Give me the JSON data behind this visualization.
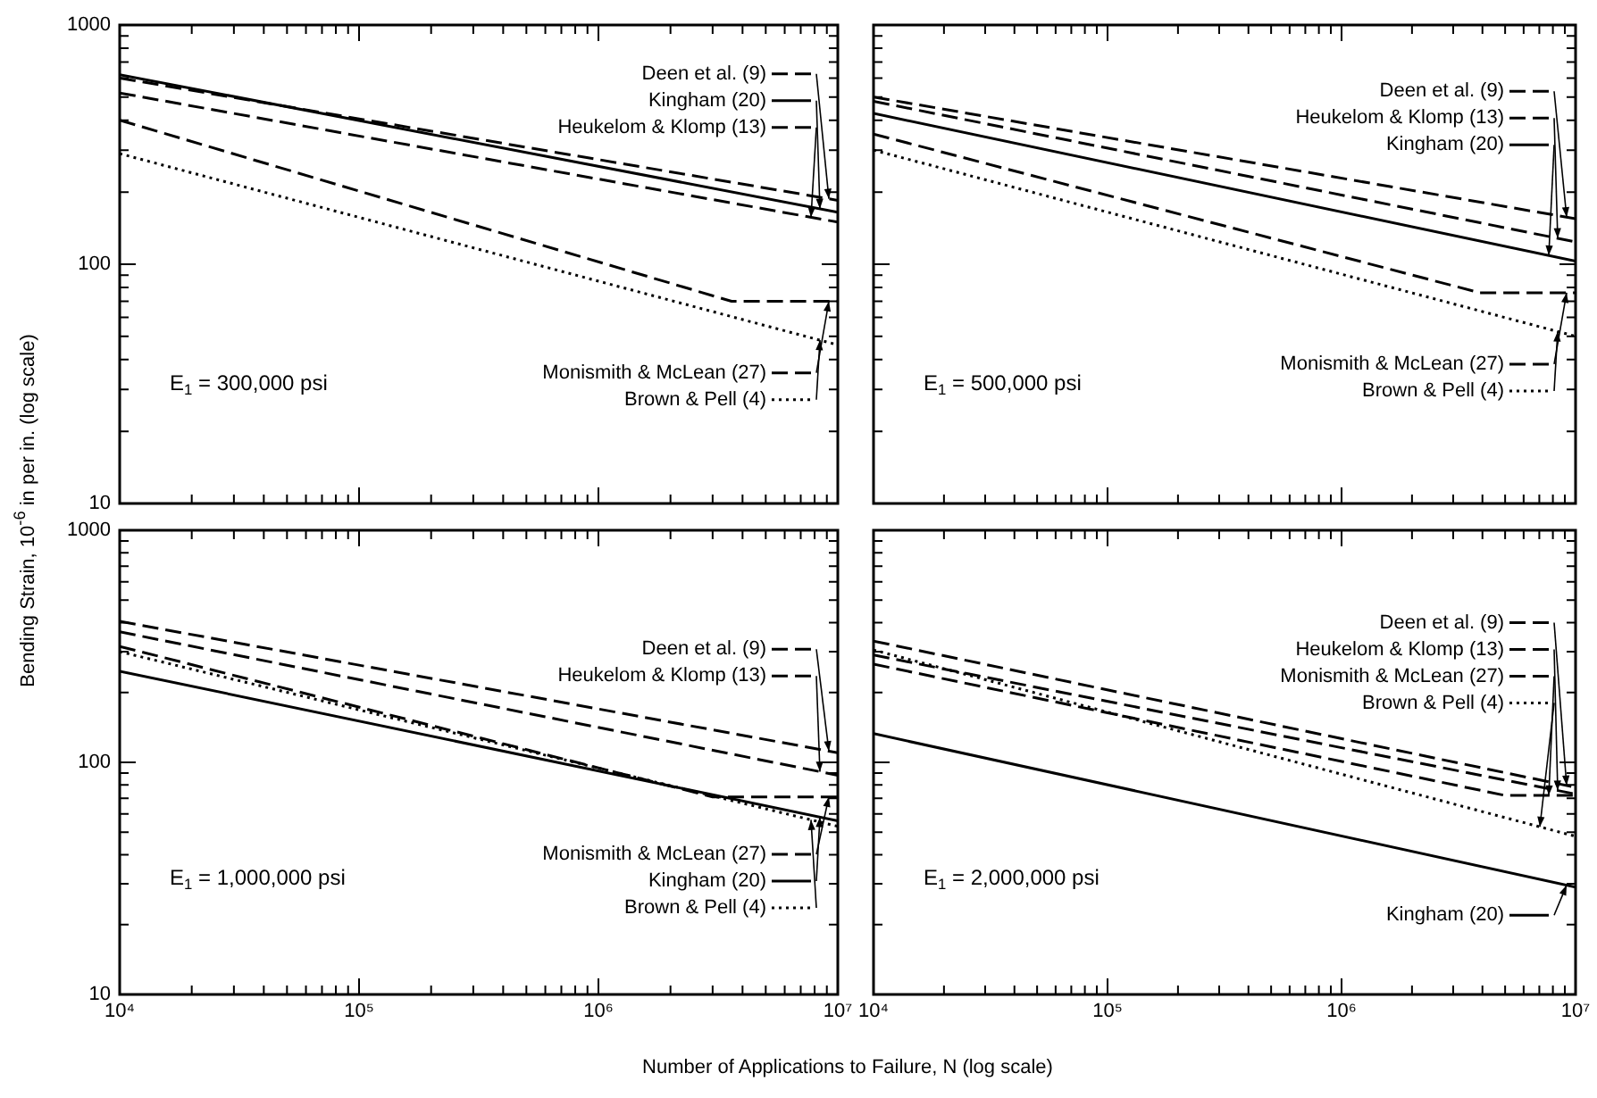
{
  "chart_data": [
    {
      "type": "line",
      "log": "xy",
      "grid": false,
      "legend": "right",
      "tick_labels": "y",
      "ylabel": "Bending Strain, 10$^{-6}$ in per in. (log scale)",
      "annotations": [
        "E$_{1}$ = 300,000 psi"
      ],
      "xlim": [
        10000,
        10000000
      ],
      "ylim": [
        10,
        1000
      ],
      "xticks": [
        {
          "value": 10000,
          "label": null
        },
        {
          "value": 20000,
          "label": null
        },
        {
          "value": 30000,
          "label": null
        },
        {
          "value": 40000,
          "label": null
        },
        {
          "value": 50000,
          "label": null
        },
        {
          "value": 60000,
          "label": null
        },
        {
          "value": 70000,
          "label": null
        },
        {
          "value": 80000,
          "label": null
        },
        {
          "value": 90000,
          "label": null
        },
        {
          "value": 100000,
          "label": null
        },
        {
          "value": 200000,
          "label": null
        },
        {
          "value": 300000,
          "label": null
        },
        {
          "value": 400000,
          "label": null
        },
        {
          "value": 500000,
          "label": null
        },
        {
          "value": 600000,
          "label": null
        },
        {
          "value": 700000,
          "label": null
        },
        {
          "value": 800000,
          "label": null
        },
        {
          "value": 900000,
          "label": null
        },
        {
          "value": 1000000,
          "label": null
        },
        {
          "value": 2000000,
          "label": null
        },
        {
          "value": 3000000,
          "label": null
        },
        {
          "value": 4000000,
          "label": null
        },
        {
          "value": 5000000,
          "label": null
        },
        {
          "value": 6000000,
          "label": null
        },
        {
          "value": 7000000,
          "label": null
        },
        {
          "value": 8000000,
          "label": null
        },
        {
          "value": 9000000,
          "label": null
        },
        {
          "value": 10000000,
          "label": null
        }
      ],
      "yticks": [
        10,
        {
          "value": 20,
          "label": null
        },
        {
          "value": 30,
          "label": null
        },
        {
          "value": 40,
          "label": null
        },
        {
          "value": 50,
          "label": null
        },
        {
          "value": 60,
          "label": null
        },
        {
          "value": 70,
          "label": null
        },
        {
          "value": 80,
          "label": null
        },
        {
          "value": 90,
          "label": null
        },
        100,
        {
          "value": 200,
          "label": null
        },
        {
          "value": 300,
          "label": null
        },
        {
          "value": 400,
          "label": null
        },
        {
          "value": 500,
          "label": null
        },
        {
          "value": 600,
          "label": null
        },
        {
          "value": 700,
          "label": null
        },
        {
          "value": 800,
          "label": null
        },
        {
          "value": 900,
          "label": null
        },
        1000
      ],
      "series": [
        {
          "name": "Deen et al. (9)",
          "color": "#000000",
          "line_style": "dashed",
          "x": [
            10000,
            10000000
          ],
          "values": [
            600,
            185
          ]
        },
        {
          "name": "Kingham (20)",
          "color": "#000000",
          "line_style": "solid",
          "x": [
            10000,
            10000000
          ],
          "values": [
            620,
            165
          ]
        },
        {
          "name": "Heukelom & Klomp (13)",
          "color": "#000000",
          "line_style": "dashed",
          "x": [
            10000,
            10000000
          ],
          "values": [
            520,
            150
          ]
        },
        {
          "name": "Monismith & McLean (27)",
          "color": "#000000",
          "line_style": "dashed",
          "x": [
            10000,
            3600000,
            10000000
          ],
          "values": [
            400,
            70,
            70
          ]
        },
        {
          "name": "Brown & Pell (4)",
          "color": "#000000",
          "line_style": "dotted",
          "x": [
            10000,
            10000000
          ],
          "values": [
            290,
            46
          ]
        }
      ]
    },
    {
      "type": "line",
      "log": "xy",
      "grid": false,
      "legend": "right",
      "tick_labels": false,
      "annotations": [
        "E$_{1}$ = 500,000 psi"
      ],
      "xlim": [
        10000,
        10000000
      ],
      "ylim": [
        10,
        1000
      ],
      "xticks": [
        {
          "value": 10000,
          "label": null
        },
        {
          "value": 20000,
          "label": null
        },
        {
          "value": 30000,
          "label": null
        },
        {
          "value": 40000,
          "label": null
        },
        {
          "value": 50000,
          "label": null
        },
        {
          "value": 60000,
          "label": null
        },
        {
          "value": 70000,
          "label": null
        },
        {
          "value": 80000,
          "label": null
        },
        {
          "value": 90000,
          "label": null
        },
        {
          "value": 100000,
          "label": null
        },
        {
          "value": 200000,
          "label": null
        },
        {
          "value": 300000,
          "label": null
        },
        {
          "value": 400000,
          "label": null
        },
        {
          "value": 500000,
          "label": null
        },
        {
          "value": 600000,
          "label": null
        },
        {
          "value": 700000,
          "label": null
        },
        {
          "value": 800000,
          "label": null
        },
        {
          "value": 900000,
          "label": null
        },
        {
          "value": 1000000,
          "label": null
        },
        {
          "value": 2000000,
          "label": null
        },
        {
          "value": 3000000,
          "label": null
        },
        {
          "value": 4000000,
          "label": null
        },
        {
          "value": 5000000,
          "label": null
        },
        {
          "value": 6000000,
          "label": null
        },
        {
          "value": 7000000,
          "label": null
        },
        {
          "value": 8000000,
          "label": null
        },
        {
          "value": 9000000,
          "label": null
        },
        {
          "value": 10000000,
          "label": null
        }
      ],
      "yticks": [
        {
          "value": 10,
          "label": null
        },
        {
          "value": 20,
          "label": null
        },
        {
          "value": 30,
          "label": null
        },
        {
          "value": 40,
          "label": null
        },
        {
          "value": 50,
          "label": null
        },
        {
          "value": 60,
          "label": null
        },
        {
          "value": 70,
          "label": null
        },
        {
          "value": 80,
          "label": null
        },
        {
          "value": 90,
          "label": null
        },
        {
          "value": 100,
          "label": null
        },
        {
          "value": 200,
          "label": null
        },
        {
          "value": 300,
          "label": null
        },
        {
          "value": 400,
          "label": null
        },
        {
          "value": 500,
          "label": null
        },
        {
          "value": 600,
          "label": null
        },
        {
          "value": 700,
          "label": null
        },
        {
          "value": 800,
          "label": null
        },
        {
          "value": 900,
          "label": null
        },
        {
          "value": 1000,
          "label": null
        }
      ],
      "series": [
        {
          "name": "Deen et al. (9)",
          "color": "#000000",
          "line_style": "dashed",
          "x": [
            10000,
            10000000
          ],
          "values": [
            500,
            155
          ]
        },
        {
          "name": "Heukelom & Klomp (13)",
          "color": "#000000",
          "line_style": "dashed",
          "x": [
            10000,
            10000000
          ],
          "values": [
            480,
            124
          ]
        },
        {
          "name": "Kingham (20)",
          "color": "#000000",
          "line_style": "solid",
          "x": [
            10000,
            10000000
          ],
          "values": [
            427,
            103
          ]
        },
        {
          "name": "Monismith & McLean (27)",
          "color": "#000000",
          "line_style": "dashed",
          "x": [
            10000,
            3900000,
            10000000
          ],
          "values": [
            350,
            76,
            76
          ]
        },
        {
          "name": "Brown & Pell (4)",
          "color": "#000000",
          "line_style": "dotted",
          "x": [
            10000,
            10000000
          ],
          "values": [
            300,
            50
          ]
        }
      ]
    },
    {
      "type": "line",
      "log": "xy",
      "grid": false,
      "legend": "right",
      "xlabel": "Number of Applications to Failure, N (log scale)",
      "annotations": [
        "E$_{1}$ = 1,000,000 psi"
      ],
      "xlim": [
        10000,
        10000000
      ],
      "ylim": [
        10,
        1000
      ],
      "xticks": [
        {
          "value": 10000,
          "label": "10⁴"
        },
        {
          "value": 20000,
          "label": null
        },
        {
          "value": 30000,
          "label": null
        },
        {
          "value": 40000,
          "label": null
        },
        {
          "value": 50000,
          "label": null
        },
        {
          "value": 60000,
          "label": null
        },
        {
          "value": 70000,
          "label": null
        },
        {
          "value": 80000,
          "label": null
        },
        {
          "value": 90000,
          "label": null
        },
        {
          "value": 100000,
          "label": "10⁵"
        },
        {
          "value": 200000,
          "label": null
        },
        {
          "value": 300000,
          "label": null
        },
        {
          "value": 400000,
          "label": null
        },
        {
          "value": 500000,
          "label": null
        },
        {
          "value": 600000,
          "label": null
        },
        {
          "value": 700000,
          "label": null
        },
        {
          "value": 800000,
          "label": null
        },
        {
          "value": 900000,
          "label": null
        },
        {
          "value": 1000000,
          "label": "10⁶"
        },
        {
          "value": 2000000,
          "label": null
        },
        {
          "value": 3000000,
          "label": null
        },
        {
          "value": 4000000,
          "label": null
        },
        {
          "value": 5000000,
          "label": null
        },
        {
          "value": 6000000,
          "label": null
        },
        {
          "value": 7000000,
          "label": null
        },
        {
          "value": 8000000,
          "label": null
        },
        {
          "value": 9000000,
          "label": null
        },
        {
          "value": 10000000,
          "label": "10⁷"
        }
      ],
      "yticks": [
        10,
        {
          "value": 20,
          "label": null
        },
        {
          "value": 30,
          "label": null
        },
        {
          "value": 40,
          "label": null
        },
        {
          "value": 50,
          "label": null
        },
        {
          "value": 60,
          "label": null
        },
        {
          "value": 70,
          "label": null
        },
        {
          "value": 80,
          "label": null
        },
        {
          "value": 90,
          "label": null
        },
        100,
        {
          "value": 200,
          "label": null
        },
        {
          "value": 300,
          "label": null
        },
        {
          "value": 400,
          "label": null
        },
        {
          "value": 500,
          "label": null
        },
        {
          "value": 600,
          "label": null
        },
        {
          "value": 700,
          "label": null
        },
        {
          "value": 800,
          "label": null
        },
        {
          "value": 900,
          "label": null
        },
        1000
      ],
      "series": [
        {
          "name": "Deen et al. (9)",
          "color": "#000000",
          "line_style": "dashed",
          "x": [
            10000,
            10000000
          ],
          "values": [
            405,
            110
          ]
        },
        {
          "name": "Heukelom & Klomp (13)",
          "color": "#000000",
          "line_style": "dashed",
          "x": [
            10000,
            10000000
          ],
          "values": [
            365,
            88
          ]
        },
        {
          "name": "Monismith & McLean (27)",
          "color": "#000000",
          "line_style": "dashed",
          "x": [
            10000,
            3000000,
            10000000
          ],
          "values": [
            316,
            71,
            71
          ]
        },
        {
          "name": "Kingham (20)",
          "color": "#000000",
          "line_style": "solid",
          "x": [
            10000,
            10000000
          ],
          "values": [
            247,
            56
          ]
        },
        {
          "name": "Brown & Pell (4)",
          "color": "#000000",
          "line_style": "dotted",
          "x": [
            10000,
            10000000
          ],
          "values": [
            300,
            53
          ]
        }
      ]
    },
    {
      "type": "line",
      "log": "xy",
      "grid": false,
      "legend": "right",
      "tick_labels": "x",
      "annotations": [
        "E$_{1}$ = 2,000,000 psi"
      ],
      "xlim": [
        10000,
        10000000
      ],
      "ylim": [
        10,
        1000
      ],
      "xticks": [
        {
          "value": 10000,
          "label": "10⁴"
        },
        {
          "value": 20000,
          "label": null
        },
        {
          "value": 30000,
          "label": null
        },
        {
          "value": 40000,
          "label": null
        },
        {
          "value": 50000,
          "label": null
        },
        {
          "value": 60000,
          "label": null
        },
        {
          "value": 70000,
          "label": null
        },
        {
          "value": 80000,
          "label": null
        },
        {
          "value": 90000,
          "label": null
        },
        {
          "value": 100000,
          "label": "10⁵"
        },
        {
          "value": 200000,
          "label": null
        },
        {
          "value": 300000,
          "label": null
        },
        {
          "value": 400000,
          "label": null
        },
        {
          "value": 500000,
          "label": null
        },
        {
          "value": 600000,
          "label": null
        },
        {
          "value": 700000,
          "label": null
        },
        {
          "value": 800000,
          "label": null
        },
        {
          "value": 900000,
          "label": null
        },
        {
          "value": 1000000,
          "label": "10⁶"
        },
        {
          "value": 2000000,
          "label": null
        },
        {
          "value": 3000000,
          "label": null
        },
        {
          "value": 4000000,
          "label": null
        },
        {
          "value": 5000000,
          "label": null
        },
        {
          "value": 6000000,
          "label": null
        },
        {
          "value": 7000000,
          "label": null
        },
        {
          "value": 8000000,
          "label": null
        },
        {
          "value": 9000000,
          "label": null
        },
        {
          "value": 10000000,
          "label": "10⁷"
        }
      ],
      "yticks": [
        {
          "value": 10,
          "label": null
        },
        {
          "value": 20,
          "label": null
        },
        {
          "value": 30,
          "label": null
        },
        {
          "value": 40,
          "label": null
        },
        {
          "value": 50,
          "label": null
        },
        {
          "value": 60,
          "label": null
        },
        {
          "value": 70,
          "label": null
        },
        {
          "value": 80,
          "label": null
        },
        {
          "value": 90,
          "label": null
        },
        {
          "value": 100,
          "label": null
        },
        {
          "value": 200,
          "label": null
        },
        {
          "value": 300,
          "label": null
        },
        {
          "value": 400,
          "label": null
        },
        {
          "value": 500,
          "label": null
        },
        {
          "value": 600,
          "label": null
        },
        {
          "value": 700,
          "label": null
        },
        {
          "value": 800,
          "label": null
        },
        {
          "value": 900,
          "label": null
        },
        {
          "value": 1000,
          "label": null
        }
      ],
      "series": [
        {
          "name": "Deen et al. (9)",
          "color": "#000000",
          "line_style": "dashed",
          "x": [
            10000,
            10000000
          ],
          "values": [
            333,
            78
          ]
        },
        {
          "name": "Heukelom & Klomp (13)",
          "color": "#000000",
          "line_style": "dashed",
          "x": [
            10000,
            10000000
          ],
          "values": [
            290,
            73
          ]
        },
        {
          "name": "Monismith & McLean (27)",
          "color": "#000000",
          "line_style": "dashed",
          "x": [
            10000,
            5000000,
            10000000
          ],
          "values": [
            265,
            72,
            72
          ]
        },
        {
          "name": "Brown & Pell (4)",
          "color": "#000000",
          "line_style": "dotted",
          "x": [
            10000,
            10000000
          ],
          "values": [
            305,
            48
          ]
        },
        {
          "name": "Kingham (20)",
          "color": "#000000",
          "line_style": "solid",
          "x": [
            10000,
            10000000
          ],
          "values": [
            133,
            29
          ]
        }
      ]
    }
  ]
}
